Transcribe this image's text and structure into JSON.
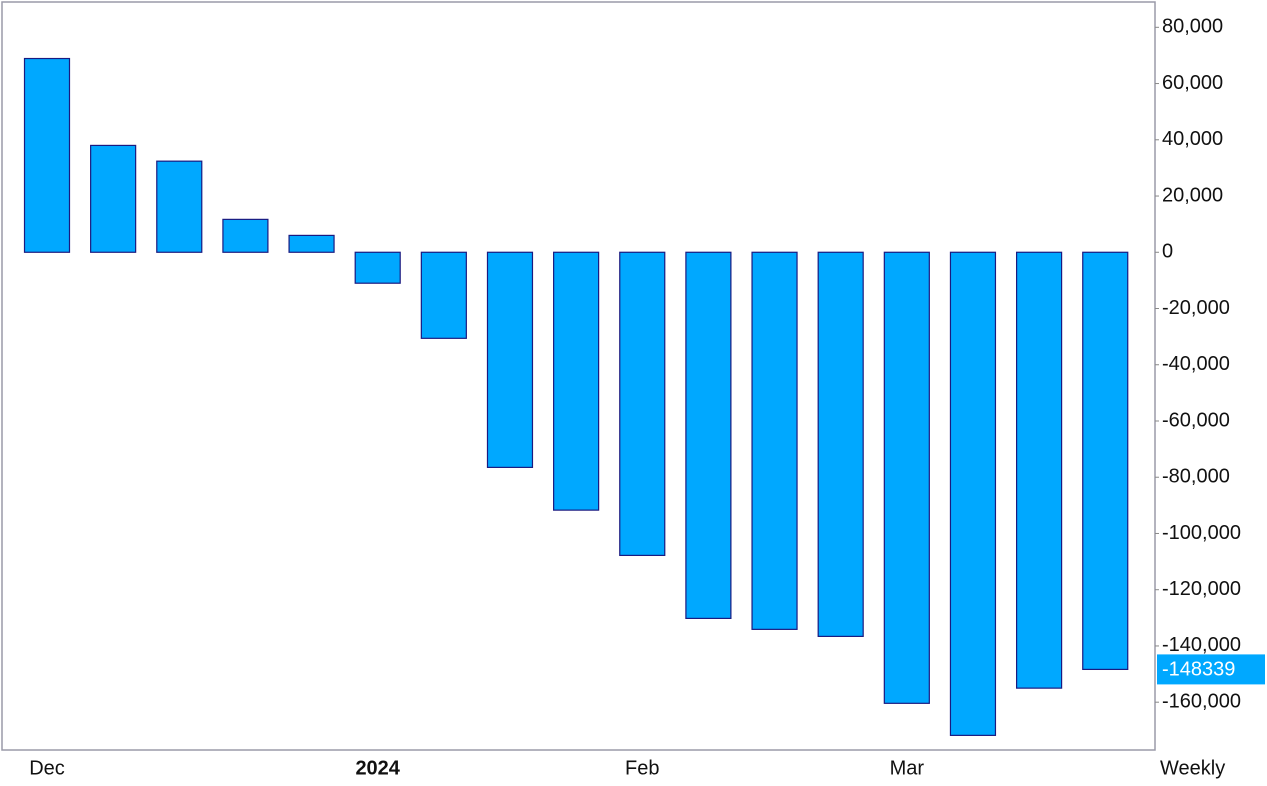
{
  "chart_data": {
    "type": "bar",
    "categories": [
      "Dec",
      null,
      null,
      null,
      null,
      "2024",
      null,
      null,
      null,
      "Feb",
      null,
      null,
      null,
      "Mar",
      null,
      null,
      null
    ],
    "values": [
      68900,
      38000,
      32400,
      11700,
      6000,
      -11000,
      -30600,
      -76500,
      -91700,
      -107800,
      -130200,
      -134100,
      -136600,
      -160400,
      -171800,
      -155000,
      -148339
    ],
    "color": "#00a8ff",
    "edge_color": "#1a1a80",
    "ylim": [
      -177000,
      89000
    ],
    "yticks": [
      {
        "value": 80000,
        "label": "80,000"
      },
      {
        "value": 60000,
        "label": "60,000"
      },
      {
        "value": 40000,
        "label": "40,000"
      },
      {
        "value": 20000,
        "label": "20,000"
      },
      0,
      {
        "value": -20000,
        "label": "-20,000"
      },
      {
        "value": -40000,
        "label": "-40,000"
      },
      {
        "value": -60000,
        "label": "-60,000"
      },
      {
        "value": -80000,
        "label": "-80,000"
      },
      {
        "value": -100000,
        "label": "-100,000"
      },
      {
        "value": -120000,
        "label": "-120,000"
      },
      {
        "value": -140000,
        "label": "-140,000"
      },
      {
        "value": -160000,
        "label": "-160,000"
      }
    ],
    "y_axis_side": "right",
    "period_label": "Weekly",
    "last_value_label": "-148339"
  }
}
